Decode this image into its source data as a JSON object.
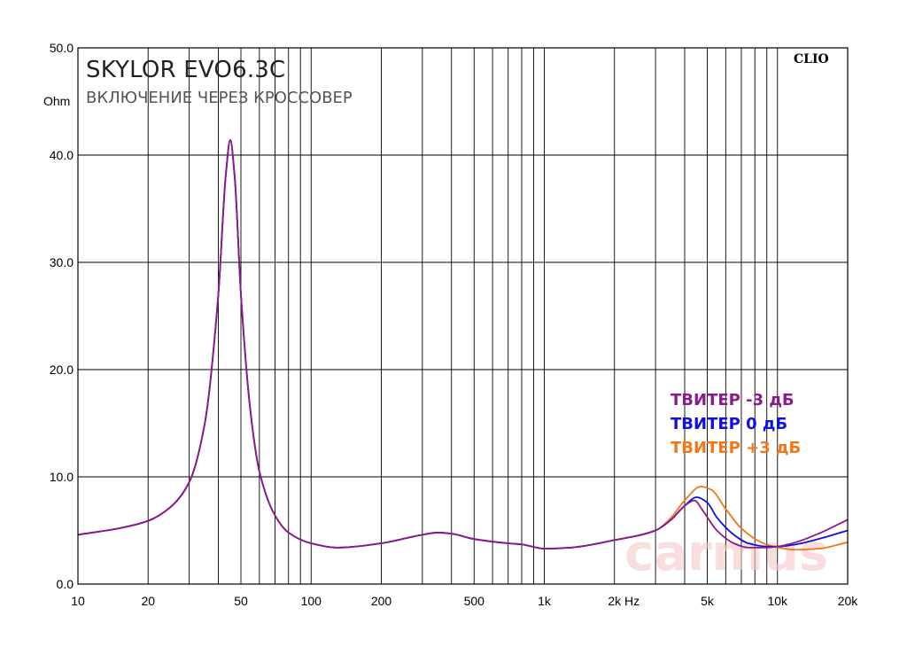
{
  "chart_data": {
    "type": "line",
    "title": "SKYLOR EVO6.3C",
    "subtitle": "ВКЛЮЧЕНИЕ ЧЕРЕЗ КРОССОВЕР",
    "ylabel": "Ohm",
    "xlabel": "Hz",
    "brand": "CLIO",
    "watermark": "carmus",
    "x_scale": "log",
    "xlim": [
      10,
      20000
    ],
    "ylim": [
      0,
      50
    ],
    "grid": true,
    "legend_position": "right",
    "x_tick_labels": [
      {
        "value": 10,
        "label": "10"
      },
      {
        "value": 20,
        "label": "20"
      },
      {
        "value": 50,
        "label": "50"
      },
      {
        "value": 100,
        "label": "100"
      },
      {
        "value": 200,
        "label": "200"
      },
      {
        "value": 500,
        "label": "500"
      },
      {
        "value": 1000,
        "label": "1k"
      },
      {
        "value": 2000,
        "label": "2k"
      },
      {
        "value": 5000,
        "label": "5k"
      },
      {
        "value": 10000,
        "label": "10k"
      },
      {
        "value": 20000,
        "label": "20k"
      }
    ],
    "y_tick_labels": [
      {
        "value": 0,
        "label": "0.0"
      },
      {
        "value": 10,
        "label": "10.0"
      },
      {
        "value": 20,
        "label": "20.0"
      },
      {
        "value": 30,
        "label": "30.0"
      },
      {
        "value": 40,
        "label": "40.0"
      },
      {
        "value": 50,
        "label": "50.0"
      }
    ],
    "series": [
      {
        "name": "ТВИТЕР -3 дБ",
        "color": "#8b1a8b",
        "points": [
          [
            10,
            4.6
          ],
          [
            15,
            5.2
          ],
          [
            20,
            5.9
          ],
          [
            25,
            7.2
          ],
          [
            30,
            9.5
          ],
          [
            35,
            15
          ],
          [
            40,
            27
          ],
          [
            43,
            38
          ],
          [
            45,
            41.4
          ],
          [
            47,
            38
          ],
          [
            50,
            27
          ],
          [
            55,
            16
          ],
          [
            60,
            10.5
          ],
          [
            70,
            6.4
          ],
          [
            80,
            4.8
          ],
          [
            100,
            3.8
          ],
          [
            130,
            3.4
          ],
          [
            200,
            3.8
          ],
          [
            300,
            4.6
          ],
          [
            350,
            4.8
          ],
          [
            400,
            4.7
          ],
          [
            500,
            4.2
          ],
          [
            700,
            3.8
          ],
          [
            800,
            3.7
          ],
          [
            1000,
            3.3
          ],
          [
            1300,
            3.4
          ],
          [
            2000,
            4.1
          ],
          [
            3000,
            5.0
          ],
          [
            3500,
            6.0
          ],
          [
            4000,
            7.3
          ],
          [
            4400,
            7.8
          ],
          [
            4800,
            6.8
          ],
          [
            5500,
            5.0
          ],
          [
            6500,
            3.8
          ],
          [
            7500,
            3.4
          ],
          [
            9000,
            3.4
          ],
          [
            10000,
            3.5
          ],
          [
            12000,
            3.9
          ],
          [
            15000,
            4.7
          ],
          [
            20000,
            6.0
          ]
        ]
      },
      {
        "name": "ТВИТЕР 0 дБ",
        "color": "#1010e0",
        "points": [
          [
            10,
            4.6
          ],
          [
            15,
            5.2
          ],
          [
            20,
            5.9
          ],
          [
            25,
            7.2
          ],
          [
            30,
            9.5
          ],
          [
            35,
            15
          ],
          [
            40,
            27
          ],
          [
            43,
            38
          ],
          [
            45,
            41.4
          ],
          [
            47,
            38
          ],
          [
            50,
            27
          ],
          [
            55,
            16
          ],
          [
            60,
            10.5
          ],
          [
            70,
            6.4
          ],
          [
            80,
            4.8
          ],
          [
            100,
            3.8
          ],
          [
            130,
            3.4
          ],
          [
            200,
            3.8
          ],
          [
            300,
            4.6
          ],
          [
            350,
            4.8
          ],
          [
            400,
            4.7
          ],
          [
            500,
            4.2
          ],
          [
            700,
            3.8
          ],
          [
            800,
            3.7
          ],
          [
            1000,
            3.3
          ],
          [
            1300,
            3.4
          ],
          [
            2000,
            4.1
          ],
          [
            3000,
            5.0
          ],
          [
            3500,
            6.0
          ],
          [
            4000,
            7.3
          ],
          [
            4500,
            8.1
          ],
          [
            5000,
            7.6
          ],
          [
            5500,
            6.2
          ],
          [
            6500,
            4.6
          ],
          [
            7500,
            3.8
          ],
          [
            9000,
            3.5
          ],
          [
            10000,
            3.5
          ],
          [
            12000,
            3.7
          ],
          [
            15000,
            4.2
          ],
          [
            20000,
            5.0
          ]
        ]
      },
      {
        "name": "ТВИТЕР +3 дБ",
        "color": "#f07818",
        "points": [
          [
            10,
            4.6
          ],
          [
            15,
            5.2
          ],
          [
            20,
            5.9
          ],
          [
            25,
            7.2
          ],
          [
            30,
            9.5
          ],
          [
            35,
            15
          ],
          [
            40,
            27
          ],
          [
            43,
            38
          ],
          [
            45,
            41.4
          ],
          [
            47,
            38
          ],
          [
            50,
            27
          ],
          [
            55,
            16
          ],
          [
            60,
            10.5
          ],
          [
            70,
            6.4
          ],
          [
            80,
            4.8
          ],
          [
            100,
            3.8
          ],
          [
            130,
            3.4
          ],
          [
            200,
            3.8
          ],
          [
            300,
            4.6
          ],
          [
            350,
            4.8
          ],
          [
            400,
            4.7
          ],
          [
            500,
            4.2
          ],
          [
            700,
            3.8
          ],
          [
            800,
            3.7
          ],
          [
            1000,
            3.3
          ],
          [
            1300,
            3.4
          ],
          [
            2000,
            4.1
          ],
          [
            3000,
            5.0
          ],
          [
            3500,
            6.2
          ],
          [
            4000,
            7.8
          ],
          [
            4700,
            9.1
          ],
          [
            5200,
            8.8
          ],
          [
            6000,
            7.0
          ],
          [
            7000,
            5.2
          ],
          [
            8500,
            3.9
          ],
          [
            10000,
            3.4
          ],
          [
            12000,
            3.2
          ],
          [
            15000,
            3.3
          ],
          [
            20000,
            3.9
          ]
        ]
      }
    ]
  }
}
